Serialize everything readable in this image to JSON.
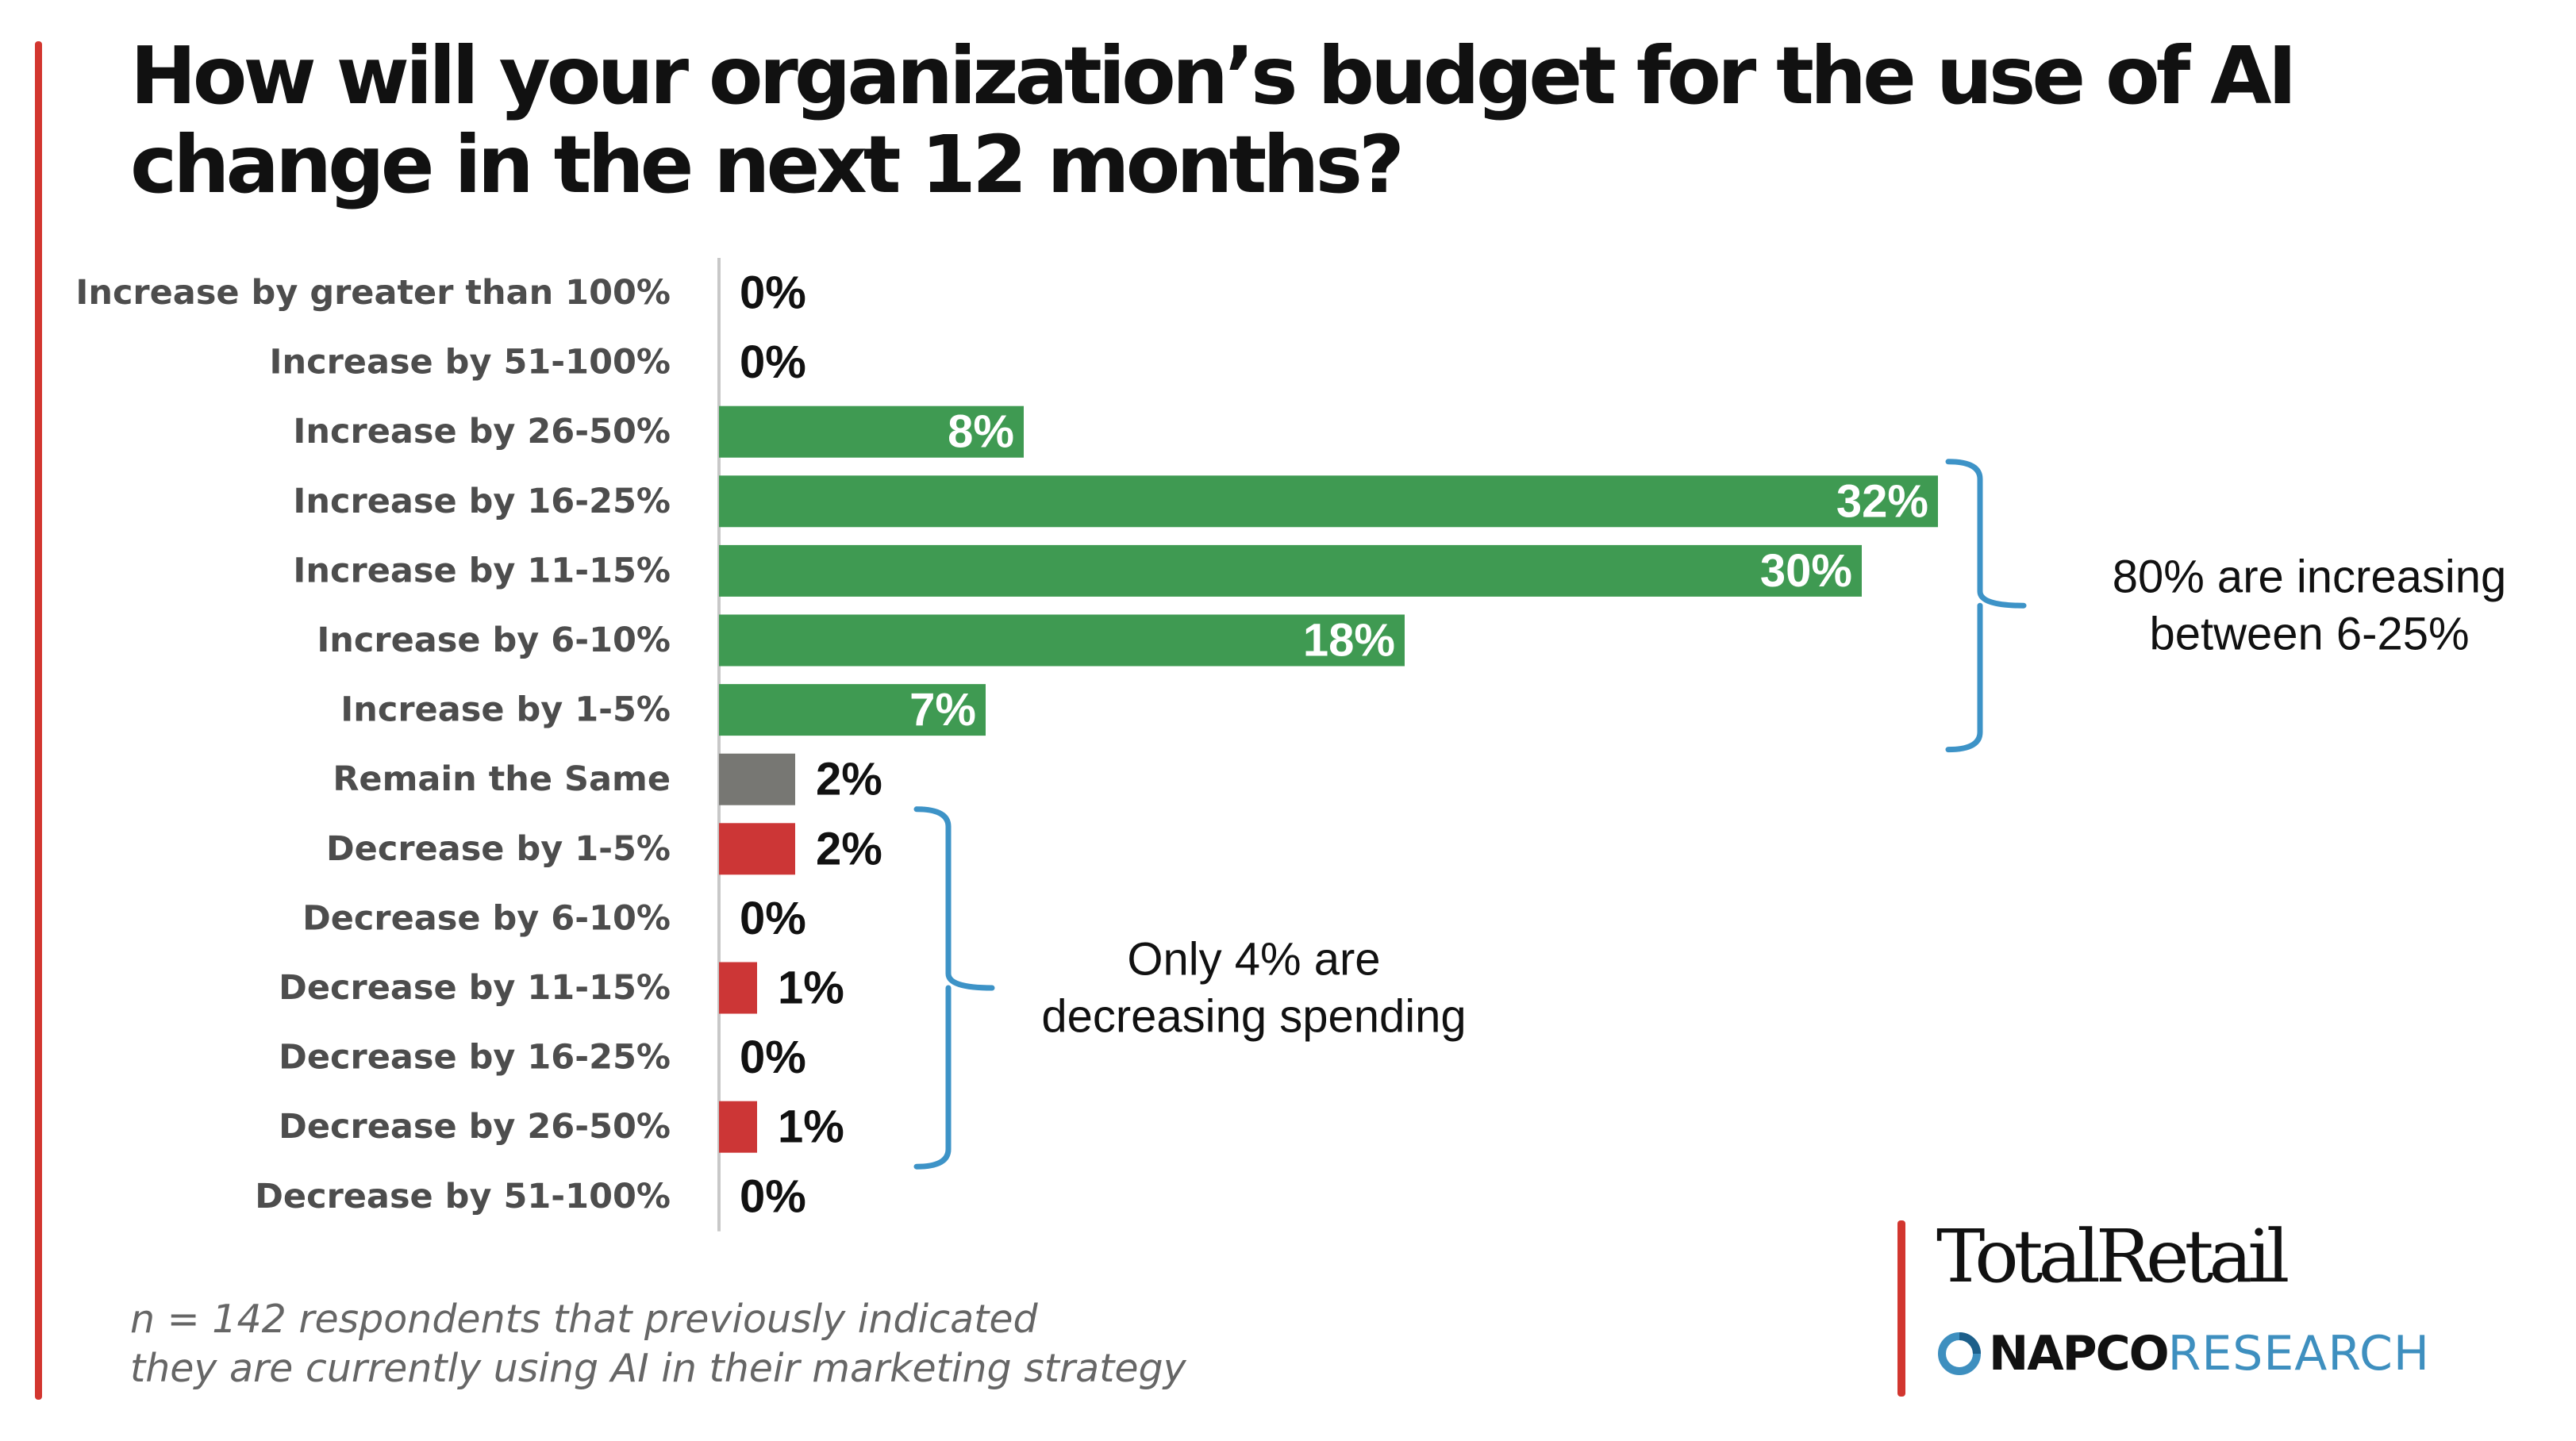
{
  "title": "How will your organization’s budget for the use of AI change in the next 12 months?",
  "footnote": {
    "line1": "n = 142 respondents that previously indicated",
    "line2": "they are currently using AI in their marketing strategy"
  },
  "brand": {
    "total_retail": "TotalRetail",
    "napco": "NAPCO",
    "research": "RESEARCH"
  },
  "colors": {
    "increase": "#3f9a52",
    "same": "#777773",
    "decrease": "#cc3636",
    "bracket": "#3d93c7",
    "accent_rule": "#d2362f"
  },
  "chart_data": {
    "type": "bar",
    "orientation": "horizontal",
    "unit": "%",
    "xlim": [
      0,
      32
    ],
    "categories": [
      "Increase by greater than 100%",
      "Increase by 51-100%",
      "Increase by 26-50%",
      "Increase by 16-25%",
      "Increase by 11-15%",
      "Increase by 6-10%",
      "Increase by 1-5%",
      "Remain the Same",
      "Decrease by 1-5%",
      "Decrease by 6-10%",
      "Decrease by 11-15%",
      "Decrease by 16-25%",
      "Decrease by 26-50%",
      "Decrease by 51-100%"
    ],
    "values": [
      0,
      0,
      8,
      32,
      30,
      18,
      7,
      2,
      2,
      0,
      1,
      0,
      1,
      0
    ],
    "labels": [
      "0%",
      "0%",
      "8%",
      "32%",
      "30%",
      "18%",
      "7%",
      "2%",
      "2%",
      "0%",
      "1%",
      "0%",
      "1%",
      "0%"
    ],
    "groups": [
      "increase",
      "increase",
      "increase",
      "increase",
      "increase",
      "increase",
      "increase",
      "same",
      "decrease",
      "decrease",
      "decrease",
      "decrease",
      "decrease",
      "decrease"
    ],
    "annotations": [
      {
        "name": "increasing",
        "lines": [
          "80% are increasing",
          "between 6-25%"
        ],
        "from": 3,
        "to": 6
      },
      {
        "name": "decreasing",
        "lines": [
          "Only 4% are",
          "decreasing spending"
        ],
        "from": 8,
        "to": 12
      }
    ]
  }
}
